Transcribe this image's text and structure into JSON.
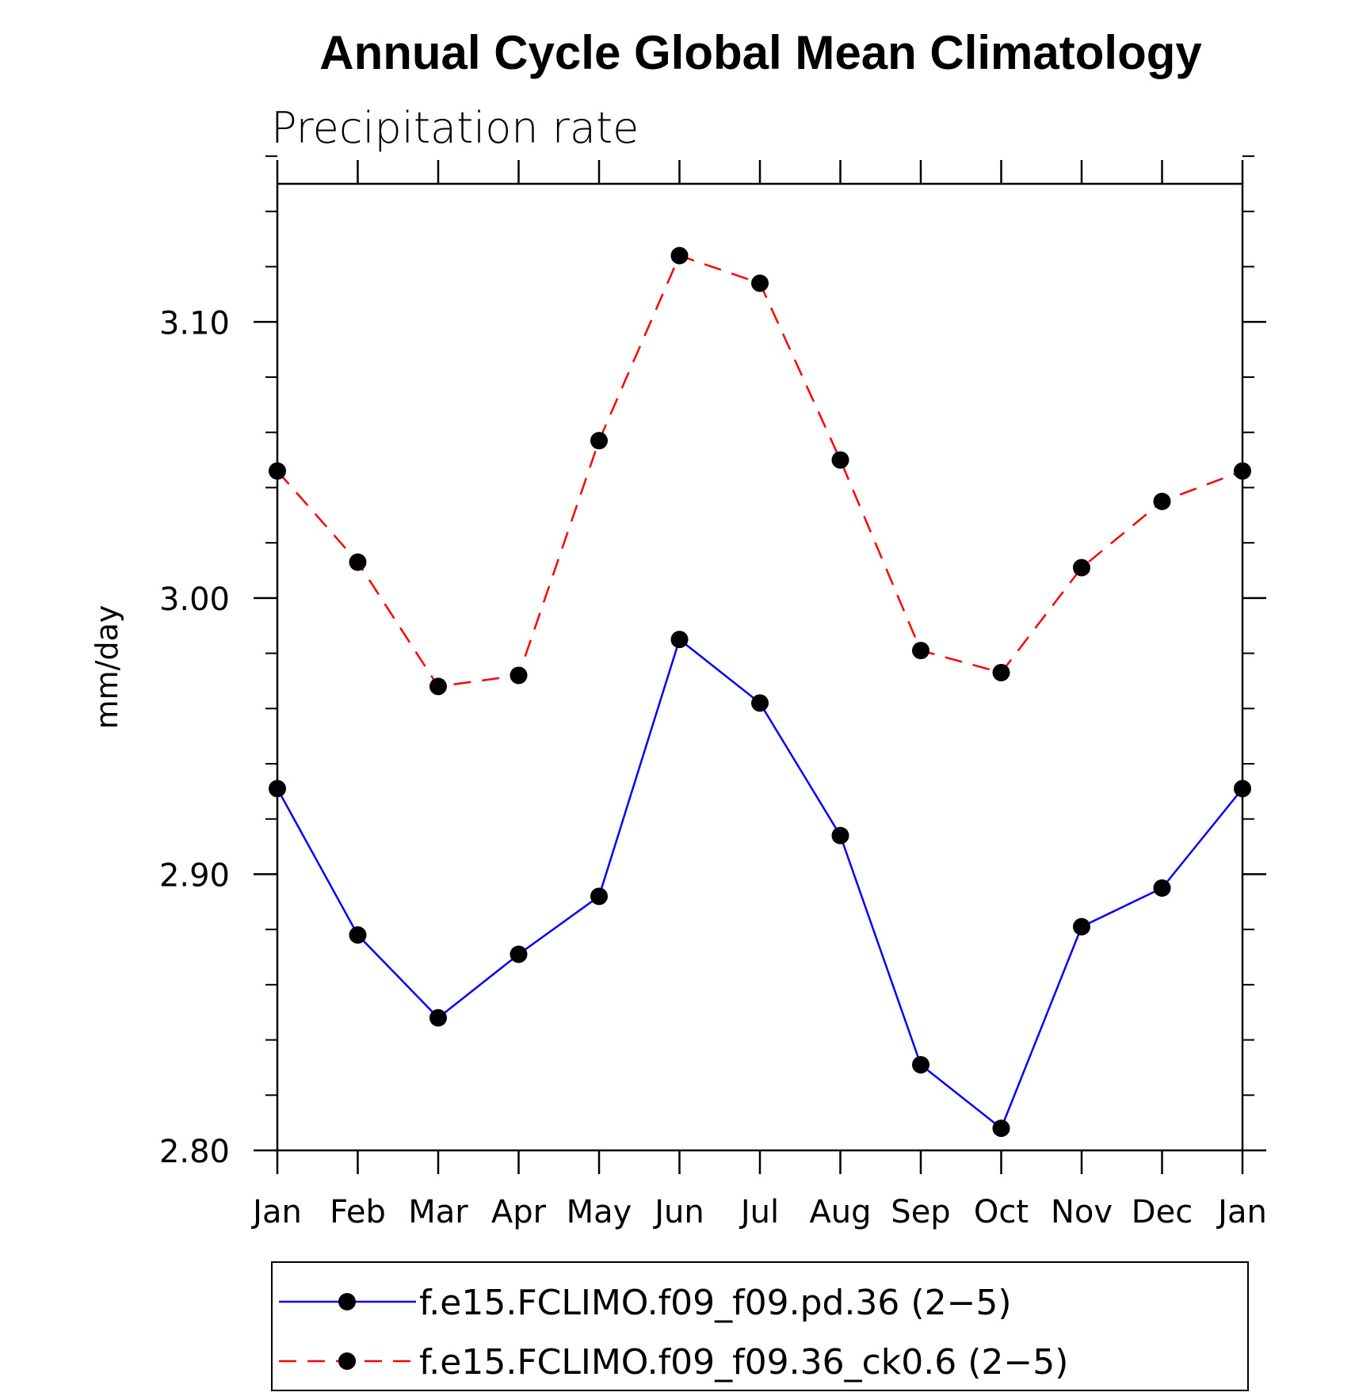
{
  "chart_data": {
    "type": "line",
    "title": "Annual Cycle Global Mean Climatology",
    "subtitle": "Precipitation rate",
    "xlabel": "",
    "ylabel": "mm/day",
    "categories": [
      "Jan",
      "Feb",
      "Mar",
      "Apr",
      "May",
      "Jun",
      "Jul",
      "Aug",
      "Sep",
      "Oct",
      "Nov",
      "Dec",
      "Jan"
    ],
    "ylim": [
      2.8,
      3.15
    ],
    "y_major_ticks": [
      2.8,
      2.9,
      3.0,
      3.1
    ],
    "y_tick_labels": [
      "2.80",
      "2.90",
      "3.00",
      "3.10"
    ],
    "y_minor_step": 0.02,
    "grid": false,
    "legend_position": "bottom",
    "series": [
      {
        "name": "f.e15.FCLIMO.f09_f09.pd.36 (2−5)",
        "color": "#0000ff",
        "line_style": "solid",
        "marker": "filled-circle",
        "values": [
          2.931,
          2.878,
          2.848,
          2.871,
          2.892,
          2.985,
          2.962,
          2.914,
          2.831,
          2.808,
          2.881,
          2.895,
          2.931
        ]
      },
      {
        "name": "f.e15.FCLIMO.f09_f09.36_ck0.6 (2−5)",
        "color": "#ff0000",
        "line_style": "dashed",
        "marker": "filled-circle",
        "values": [
          3.046,
          3.013,
          2.968,
          2.972,
          3.057,
          3.124,
          3.114,
          3.05,
          2.981,
          2.973,
          3.011,
          3.035,
          3.046
        ]
      }
    ]
  }
}
